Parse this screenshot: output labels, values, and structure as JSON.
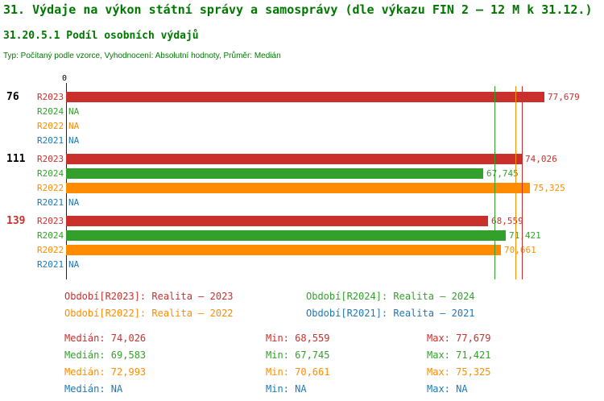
{
  "palette": {
    "heading_green": "#007700",
    "axis_black": "#222222"
  },
  "header": {
    "title": "31. Výdaje na výkon státní správy a samosprávy (dle výkazu FIN 2 – 12 M k 31.12.)",
    "subtitle": "31.20.5.1 Podíl osobních výdajů",
    "meta": "Typ: Počítaný podle vzorce, Vyhodnocení: Absolutní hodnoty, Průměr: Medián"
  },
  "chart_data": {
    "type": "bar",
    "orientation": "horizontal",
    "xlim": [
      0,
      77679
    ],
    "axis_origin_label": "0",
    "series": [
      "R2023",
      "R2024",
      "R2022",
      "R2021"
    ],
    "series_colors": {
      "R2023": "#c9302c",
      "R2024": "#33a02c",
      "R2022": "#ff8c00",
      "R2021": "#1f77b4"
    },
    "groups": [
      {
        "label": "76",
        "label_color": "#000000",
        "rows": [
          {
            "series": "R2023",
            "value": 77679,
            "display": "77,679"
          },
          {
            "series": "R2024",
            "value": null,
            "display": "NA"
          },
          {
            "series": "R2022",
            "value": null,
            "display": "NA"
          },
          {
            "series": "R2021",
            "value": null,
            "display": "NA"
          }
        ]
      },
      {
        "label": "111",
        "label_color": "#000000",
        "rows": [
          {
            "series": "R2023",
            "value": 74026,
            "display": "74,026"
          },
          {
            "series": "R2024",
            "value": 67745,
            "display": "67,745"
          },
          {
            "series": "R2022",
            "value": 75325,
            "display": "75,325"
          },
          {
            "series": "R2021",
            "value": null,
            "display": "NA"
          }
        ]
      },
      {
        "label": "139",
        "label_color": "#c9302c",
        "rows": [
          {
            "series": "R2023",
            "value": 68559,
            "display": "68,559"
          },
          {
            "series": "R2024",
            "value": 71421,
            "display": "71,421"
          },
          {
            "series": "R2022",
            "value": 70661,
            "display": "70,661"
          },
          {
            "series": "R2021",
            "value": null,
            "display": "NA"
          }
        ]
      }
    ],
    "median_lines": [
      {
        "series": "R2023",
        "value": 74026
      },
      {
        "series": "R2024",
        "value": 69583
      },
      {
        "series": "R2022",
        "value": 72993
      }
    ],
    "summary_numeric": {
      "R2023": {
        "median": 74026,
        "min": 68559,
        "max": 77679
      },
      "R2024": {
        "median": 69583,
        "min": 67745,
        "max": 71421
      },
      "R2022": {
        "median": 72993,
        "min": 70661,
        "max": 75325
      },
      "R2021": {
        "median": null,
        "min": null,
        "max": null
      }
    }
  },
  "legend": [
    {
      "series": "R2023",
      "text": "Období[R2023]: Realita – 2023"
    },
    {
      "series": "R2024",
      "text": "Období[R2024]: Realita – 2024"
    },
    {
      "series": "R2022",
      "text": "Období[R2022]: Realita – 2022"
    },
    {
      "series": "R2021",
      "text": "Období[R2021]: Realita – 2021"
    }
  ],
  "stats": [
    {
      "series": "R2023",
      "median": "Medián: 74,026",
      "min": "Min: 68,559",
      "max": "Max: 77,679"
    },
    {
      "series": "R2024",
      "median": "Medián: 69,583",
      "min": "Min: 67,745",
      "max": "Max: 71,421"
    },
    {
      "series": "R2022",
      "median": "Medián: 72,993",
      "min": "Min: 70,661",
      "max": "Max: 75,325"
    },
    {
      "series": "R2021",
      "median": "Medián: NA",
      "min": "Min: NA",
      "max": "Max: NA"
    }
  ]
}
